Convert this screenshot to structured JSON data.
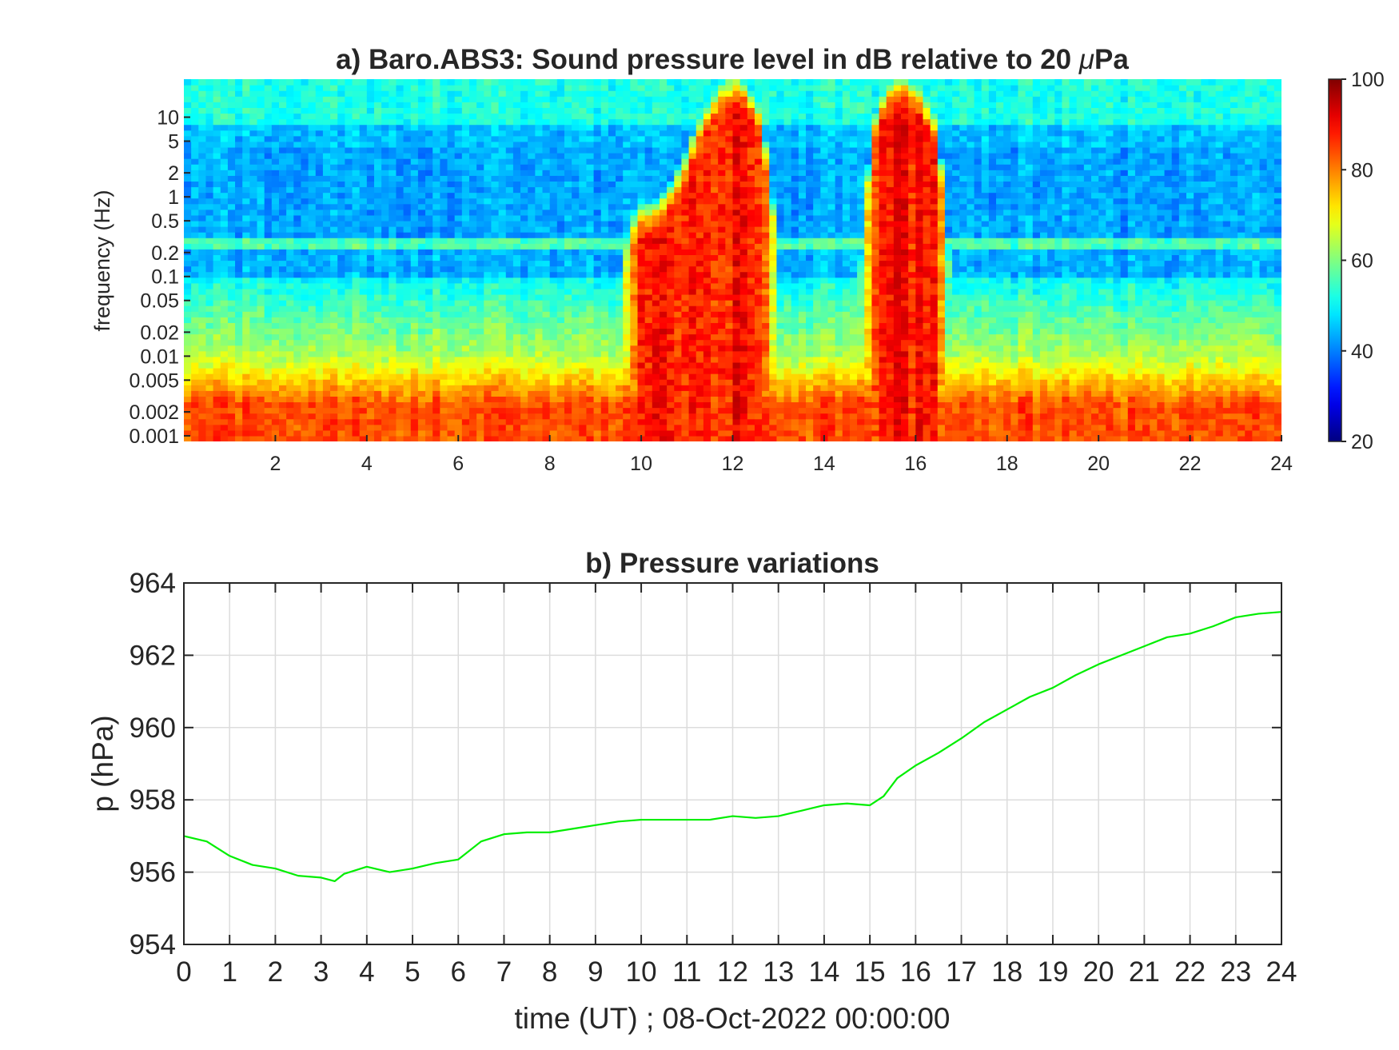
{
  "chart_data": [
    {
      "type": "heatmap",
      "title": "a) Baro.ABS3: Sound pressure level in dB relative to 20 ",
      "title_mu": "μ",
      "title_suffix": "Pa",
      "ylabel": "frequency (Hz)",
      "xlabel": "",
      "x_ticks": [
        "2",
        "4",
        "6",
        "8",
        "10",
        "12",
        "14",
        "16",
        "18",
        "20",
        "22",
        "24"
      ],
      "x_tick_values": [
        2,
        4,
        6,
        8,
        10,
        12,
        14,
        16,
        18,
        20,
        22,
        24
      ],
      "xlim": [
        0,
        24
      ],
      "y_scale": "log",
      "ylim": [
        0.00085,
        30
      ],
      "y_ticks": [
        "0.001",
        "0.002",
        "0.005",
        "0.01",
        "0.02",
        "0.05",
        "0.1",
        "0.2",
        "0.5",
        "1",
        "2",
        "5",
        "10"
      ],
      "y_tick_values": [
        0.001,
        0.002,
        0.005,
        0.01,
        0.02,
        0.05,
        0.1,
        0.2,
        0.5,
        1,
        2,
        5,
        10
      ],
      "colormap": "jet",
      "colorbar": {
        "range": [
          20,
          100
        ],
        "ticks": [
          "20",
          "40",
          "60",
          "80",
          "100"
        ],
        "tick_values": [
          20,
          40,
          60,
          80,
          100
        ]
      },
      "events": [
        {
          "start": 9.5,
          "end": 12.8,
          "peak_db": 90
        },
        {
          "start": 14.8,
          "end": 17.0,
          "peak_db": 88
        },
        {
          "center": 15.6,
          "peak_db": 92
        }
      ]
    },
    {
      "type": "line",
      "title": "b) Pressure variations",
      "xlabel": "time (UT) ; 08-Oct-2022 00:00:00",
      "ylabel": "p (hPa)",
      "xlim": [
        0,
        24
      ],
      "ylim": [
        954,
        964
      ],
      "x_ticks": [
        "0",
        "1",
        "2",
        "3",
        "4",
        "5",
        "6",
        "7",
        "8",
        "9",
        "10",
        "11",
        "12",
        "13",
        "14",
        "15",
        "16",
        "17",
        "18",
        "19",
        "20",
        "21",
        "22",
        "23",
        "24"
      ],
      "x_tick_values": [
        0,
        1,
        2,
        3,
        4,
        5,
        6,
        7,
        8,
        9,
        10,
        11,
        12,
        13,
        14,
        15,
        16,
        17,
        18,
        19,
        20,
        21,
        22,
        23,
        24
      ],
      "y_ticks": [
        "954",
        "956",
        "958",
        "960",
        "962",
        "964"
      ],
      "y_tick_values": [
        954,
        956,
        958,
        960,
        962,
        964
      ],
      "grid": true,
      "line_color": "#00ee00",
      "series": [
        {
          "x": [
            0,
            0.5,
            1,
            1.5,
            2,
            2.5,
            3,
            3.3,
            3.5,
            4,
            4.5,
            5,
            5.5,
            6,
            6.5,
            7,
            7.5,
            8,
            8.5,
            9,
            9.5,
            10,
            10.5,
            11,
            11.5,
            12,
            12.5,
            13,
            13.5,
            14,
            14.5,
            15,
            15.3,
            15.6,
            16,
            16.5,
            17,
            17.5,
            18,
            18.5,
            19,
            19.5,
            20,
            20.5,
            21,
            21.5,
            22,
            22.5,
            23,
            23.5,
            24
          ],
          "y": [
            957.0,
            956.85,
            956.45,
            956.2,
            956.1,
            955.9,
            955.85,
            955.75,
            955.95,
            956.15,
            956.0,
            956.1,
            956.25,
            956.35,
            956.85,
            957.05,
            957.1,
            957.1,
            957.2,
            957.3,
            957.4,
            957.45,
            957.45,
            957.45,
            957.45,
            957.55,
            957.5,
            957.55,
            957.7,
            957.85,
            957.9,
            957.85,
            958.1,
            958.6,
            958.95,
            959.3,
            959.7,
            960.15,
            960.5,
            960.85,
            961.1,
            961.45,
            961.75,
            962.0,
            962.25,
            962.5,
            962.6,
            962.8,
            963.05,
            963.15,
            963.2
          ]
        }
      ]
    }
  ]
}
